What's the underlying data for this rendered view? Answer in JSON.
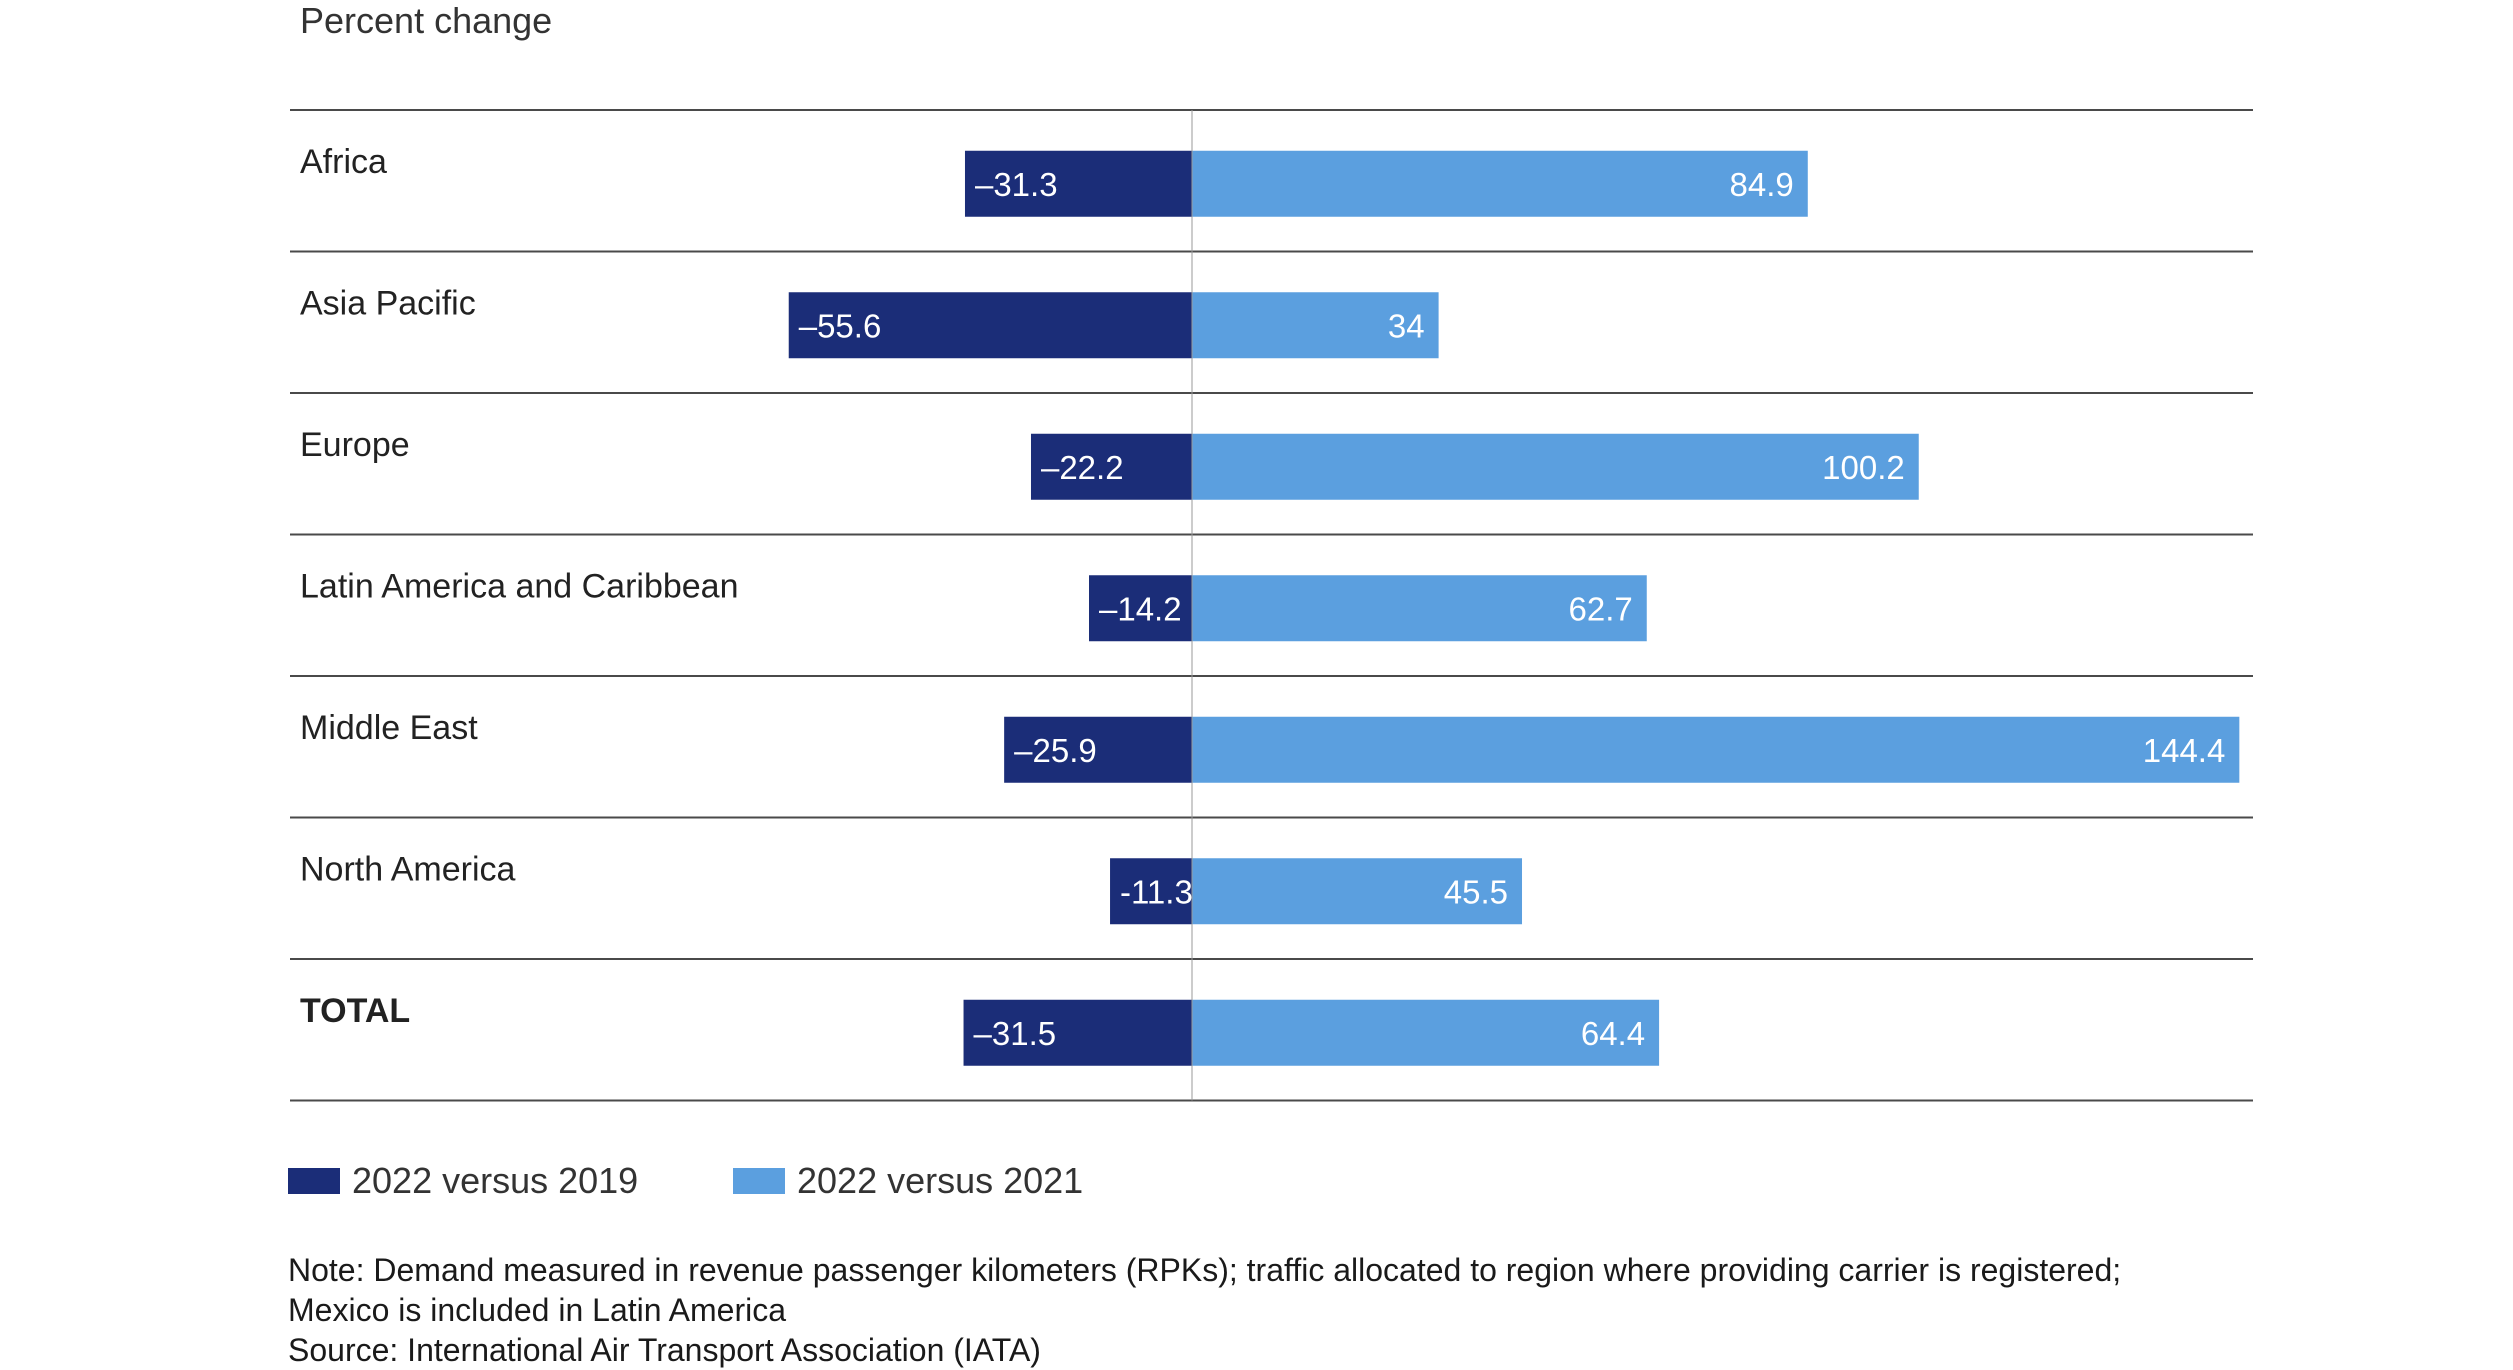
{
  "chart_data": {
    "type": "bar",
    "orientation": "horizontal",
    "ylabel": "Percent change",
    "categories": [
      "Africa",
      "Asia Pacific",
      "Europe",
      "Latin America and Caribbean",
      "Middle East",
      "North America",
      "TOTAL"
    ],
    "series": [
      {
        "name": "2022  versus 2019",
        "values": [
          -31.3,
          -55.6,
          -22.2,
          -14.2,
          -25.9,
          -11.3,
          -31.5
        ],
        "labels": [
          "–31.3",
          "–55.6",
          "–22.2",
          "–14.2",
          "–25.9",
          "-11.3",
          "–31.5"
        ],
        "color": "#1b2d78"
      },
      {
        "name": "2022  versus 2021",
        "values": [
          84.9,
          34,
          100.2,
          62.7,
          144.4,
          45.5,
          64.4
        ],
        "labels": [
          "84.9",
          "34",
          "100.2",
          "62.7",
          "144.4",
          "45.5",
          "64.4"
        ],
        "color": "#5b9fdf"
      }
    ],
    "xlim": [
      -60,
      145
    ],
    "grid": false,
    "legend_placement": "bottom-left"
  },
  "notes": {
    "line1": "Note: Demand measured in revenue passenger kilometers (RPKs); traffic allocated to region where providing carrier is registered;",
    "line2": "Mexico is included in Latin America",
    "source": "Source: International Air Transport Association (IATA)"
  }
}
